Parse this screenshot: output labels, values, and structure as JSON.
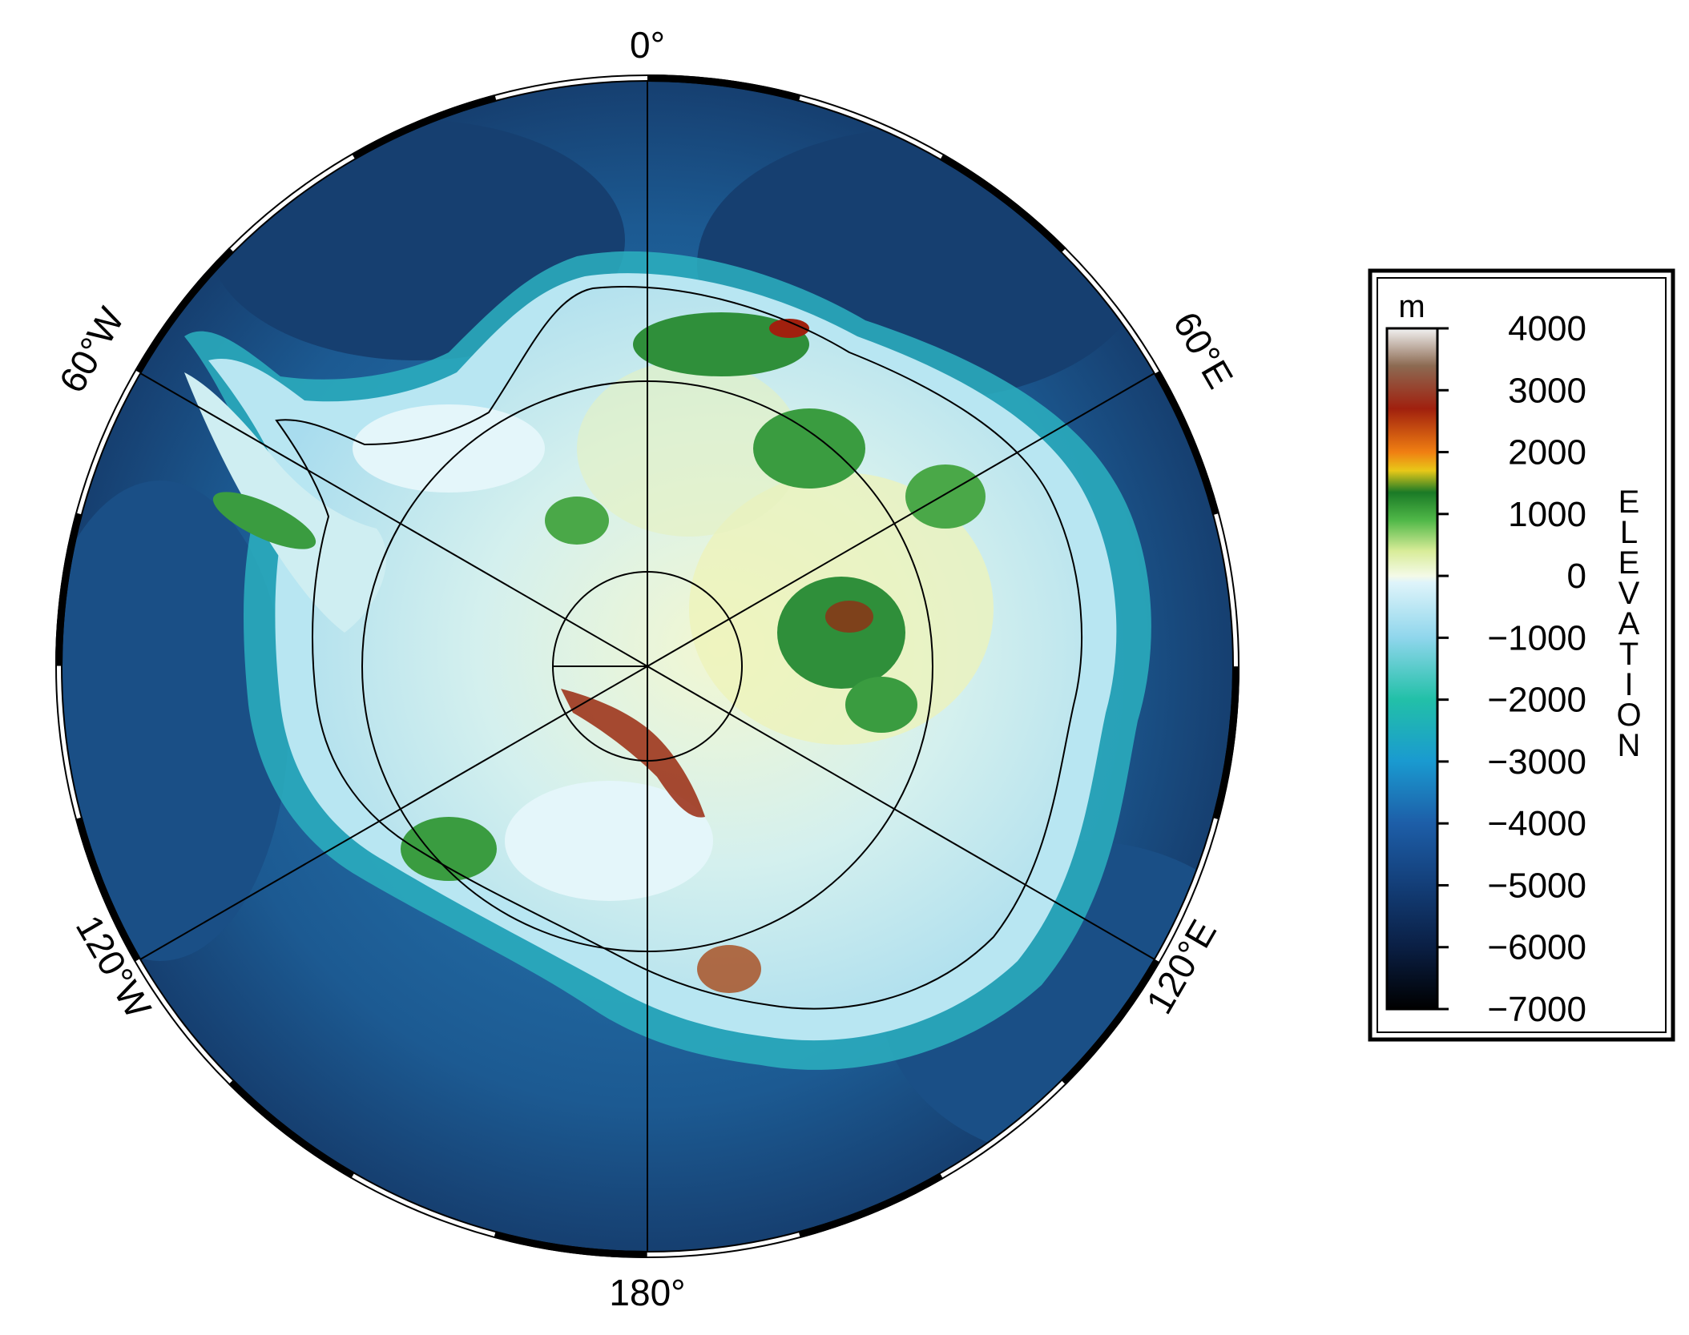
{
  "map": {
    "projection": "south-polar-stereographic",
    "longitude_labels": [
      "0°",
      "60°E",
      "120°E",
      "180°",
      "120°W",
      "60°W"
    ],
    "colors": {
      "deep_ocean": "#14345c",
      "ocean": "#1e5f96",
      "shelf": "#2aa8c8",
      "coast": "#a6def0",
      "ice_low": "#d9f0f6",
      "ice_mid": "#e7f3c4",
      "highland": "#2f8f3a",
      "peak": "#9a2a10",
      "coastline": "#000000",
      "graticule": "#000000"
    }
  },
  "colorbar": {
    "unit": "m",
    "label": "ELEVATION",
    "range": [
      -7000,
      4000
    ],
    "ticks": [
      "4000",
      "3000",
      "2000",
      "1000",
      "0",
      "−1000",
      "−2000",
      "−3000",
      "−4000",
      "−5000",
      "−6000",
      "−7000"
    ],
    "stops": [
      {
        "value": 4000,
        "color": "#f2f2f2"
      },
      {
        "value": 3400,
        "color": "#8c6a52"
      },
      {
        "value": 2700,
        "color": "#a0200e"
      },
      {
        "value": 2000,
        "color": "#f07f12"
      },
      {
        "value": 1700,
        "color": "#e8c818"
      },
      {
        "value": 1350,
        "color": "#1a7a26"
      },
      {
        "value": 900,
        "color": "#50b848"
      },
      {
        "value": 400,
        "color": "#d8ec98"
      },
      {
        "value": 0,
        "color": "#f4fae8"
      },
      {
        "value": -100,
        "color": "#dff4fa"
      },
      {
        "value": -1000,
        "color": "#8fd6ec"
      },
      {
        "value": -2000,
        "color": "#22c0a8"
      },
      {
        "value": -3000,
        "color": "#1a9ad0"
      },
      {
        "value": -4000,
        "color": "#1d5ea8"
      },
      {
        "value": -5000,
        "color": "#133e78"
      },
      {
        "value": -6000,
        "color": "#0a1f44"
      },
      {
        "value": -7000,
        "color": "#000000"
      }
    ]
  }
}
